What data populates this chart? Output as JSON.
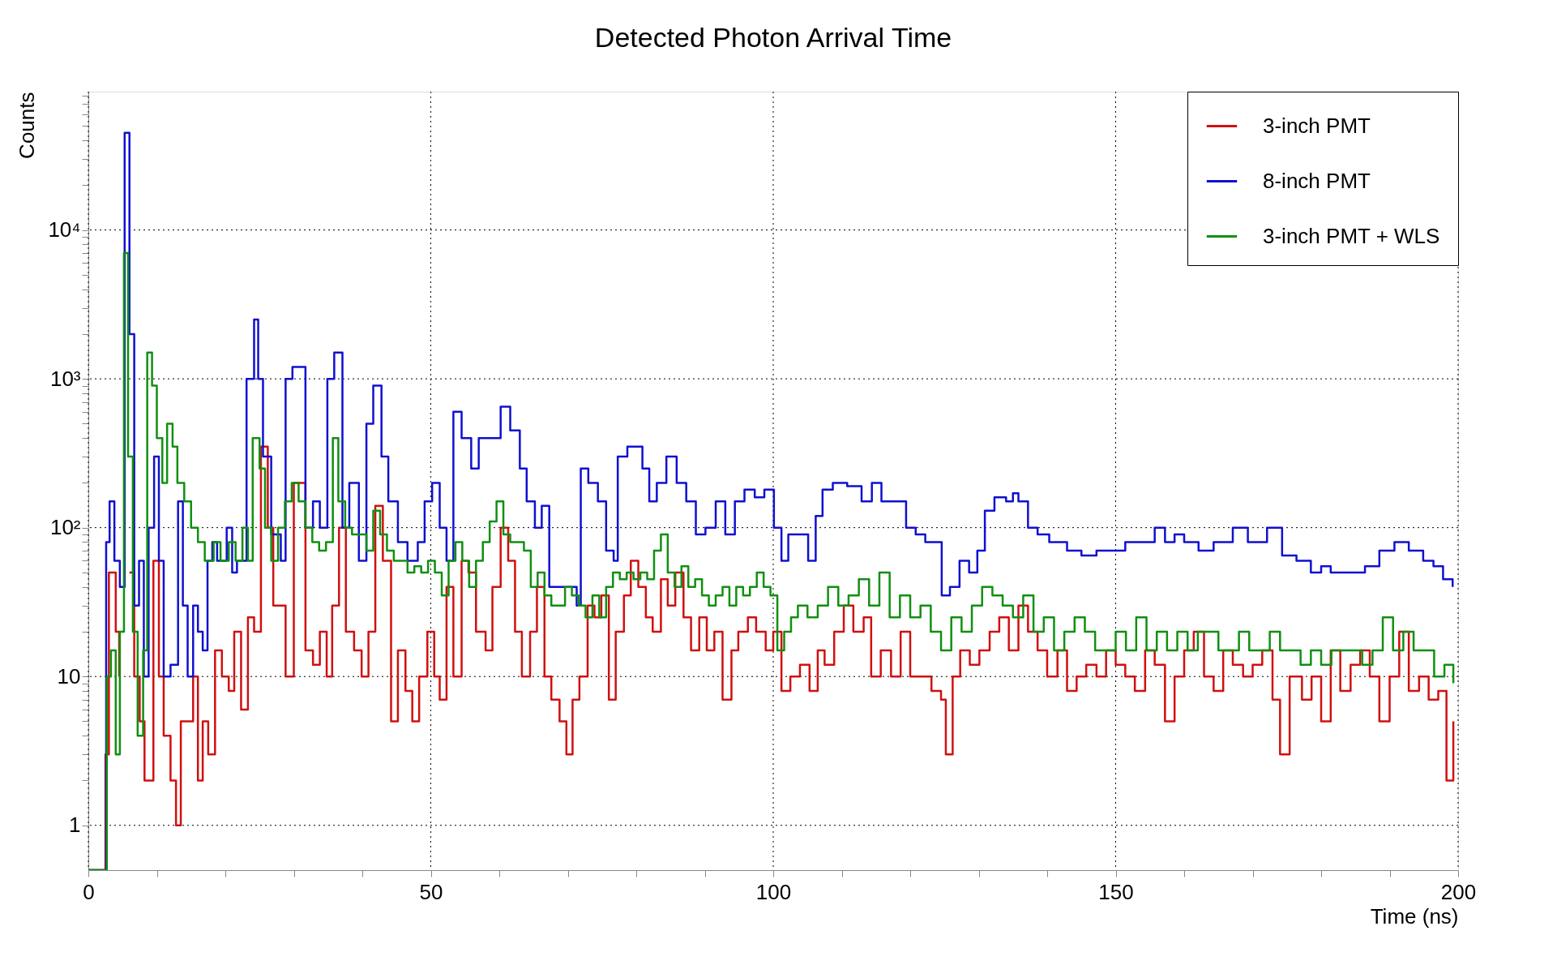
{
  "chart_data": {
    "type": "step",
    "title": "Detected Photon Arrival Time",
    "xlabel": "Time (ns)",
    "ylabel": "Counts",
    "log": "y",
    "grid": true,
    "legend": "top right",
    "xlim": [
      0,
      200
    ],
    "ylim": [
      0.5,
      85000
    ],
    "xticks": [
      0,
      {
        "value": 10,
        "label": null
      },
      {
        "value": 20,
        "label": null
      },
      {
        "value": 30,
        "label": null
      },
      {
        "value": 40,
        "label": null
      },
      50,
      {
        "value": 60,
        "label": null
      },
      {
        "value": 70,
        "label": null
      },
      {
        "value": 80,
        "label": null
      },
      {
        "value": 90,
        "label": null
      },
      100,
      {
        "value": 110,
        "label": null
      },
      {
        "value": 120,
        "label": null
      },
      {
        "value": 130,
        "label": null
      },
      {
        "value": 140,
        "label": null
      },
      150,
      {
        "value": 160,
        "label": null
      },
      {
        "value": 170,
        "label": null
      },
      {
        "value": 180,
        "label": null
      },
      {
        "value": 190,
        "label": null
      },
      200
    ],
    "yticks": [
      1,
      {
        "value": 2,
        "label": null
      },
      {
        "value": 3,
        "label": null
      },
      {
        "value": 4,
        "label": null
      },
      {
        "value": 5,
        "label": null
      },
      {
        "value": 6,
        "label": null
      },
      {
        "value": 7,
        "label": null
      },
      {
        "value": 8,
        "label": null
      },
      {
        "value": 9,
        "label": null
      },
      10,
      {
        "value": 20,
        "label": null
      },
      {
        "value": 30,
        "label": null
      },
      {
        "value": 40,
        "label": null
      },
      {
        "value": 50,
        "label": null
      },
      {
        "value": 60,
        "label": null
      },
      {
        "value": 70,
        "label": null
      },
      {
        "value": 80,
        "label": null
      },
      {
        "value": 90,
        "label": null
      },
      {
        "value": 100,
        "label": "10²"
      },
      {
        "value": 200,
        "label": null
      },
      {
        "value": 300,
        "label": null
      },
      {
        "value": 400,
        "label": null
      },
      {
        "value": 500,
        "label": null
      },
      {
        "value": 600,
        "label": null
      },
      {
        "value": 700,
        "label": null
      },
      {
        "value": 800,
        "label": null
      },
      {
        "value": 900,
        "label": null
      },
      {
        "value": 1000,
        "label": "10³"
      },
      {
        "value": 2000,
        "label": null
      },
      {
        "value": 3000,
        "label": null
      },
      {
        "value": 4000,
        "label": null
      },
      {
        "value": 5000,
        "label": null
      },
      {
        "value": 6000,
        "label": null
      },
      {
        "value": 7000,
        "label": null
      },
      {
        "value": 8000,
        "label": null
      },
      {
        "value": 9000,
        "label": null
      },
      {
        "value": 10000,
        "label": "10⁴"
      },
      {
        "value": 20000,
        "label": null
      },
      {
        "value": 30000,
        "label": null
      },
      {
        "value": 40000,
        "label": null
      },
      {
        "value": 50000,
        "label": null
      },
      {
        "value": 60000,
        "label": null
      },
      {
        "value": 70000,
        "label": null
      },
      {
        "value": 80000,
        "label": null
      }
    ],
    "series": [
      {
        "name": "3-inch PMT",
        "color": "#d01010",
        "x": [
          0,
          2.5,
          3,
          4,
          4.5,
          5.2,
          6,
          6.7,
          7.5,
          8.2,
          9.5,
          10.3,
          11,
          12,
          12.8,
          13.5,
          14.5,
          15.3,
          16,
          16.7,
          17.5,
          18.5,
          19.5,
          20.5,
          21.3,
          22.3,
          23.3,
          24.2,
          25.2,
          26.2,
          27,
          28,
          28.8,
          30,
          30.7,
          31.7,
          32.8,
          33.8,
          34.8,
          35.6,
          36.6,
          37.6,
          38.8,
          39.9,
          40.9,
          41.9,
          43,
          44.2,
          45.2,
          46.3,
          47.3,
          48.3,
          49.5,
          50.5,
          51.3,
          52.3,
          53.3,
          54.5,
          55.5,
          56.6,
          58,
          59,
          60.2,
          61.3,
          62.3,
          63.3,
          64.5,
          65.5,
          66.6,
          67.6,
          68.8,
          69.8,
          70.7,
          71.7,
          72.9,
          73.9,
          74.9,
          76,
          77,
          78.2,
          79.2,
          80.3,
          81.4,
          82.4,
          83.6,
          84.6,
          85.7,
          86.9,
          88,
          89.2,
          90.3,
          91.4,
          92.6,
          93.9,
          94.9,
          96.3,
          97.5,
          98.9,
          100,
          101.2,
          102.5,
          103.9,
          105.3,
          106.5,
          107.5,
          108.9,
          110.3,
          111.7,
          113.2,
          114.3,
          115.7,
          117.2,
          118.6,
          120,
          121.7,
          123.1,
          124.5,
          125.2,
          126.2,
          127.3,
          128.7,
          130.1,
          131.6,
          133,
          134.4,
          135.8,
          137.2,
          138.6,
          140,
          141.5,
          142.9,
          144.3,
          145.7,
          147.2,
          148.6,
          150,
          151.4,
          152.8,
          154.3,
          155.7,
          157.2,
          158.6,
          160,
          161.4,
          162.9,
          164.3,
          165.7,
          167.1,
          168.6,
          170,
          171.4,
          172.9,
          174,
          175.4,
          177.2,
          178.6,
          180,
          181.4,
          182.8,
          184.3,
          185.7,
          187.1,
          188.5,
          190,
          191.4,
          192.8,
          194.3,
          195.7,
          197.1,
          198.3,
          199.3
        ],
        "values": [
          0.5,
          3,
          50,
          20,
          10,
          null,
          50,
          10,
          5,
          2,
          60,
          10,
          4,
          2,
          1,
          5,
          5,
          10,
          2,
          5,
          3,
          15,
          10,
          8,
          20,
          6,
          25,
          20,
          350,
          100,
          30,
          30,
          10,
          200,
          200,
          15,
          12,
          20,
          10,
          30,
          100,
          20,
          15,
          10,
          20,
          140,
          60,
          5,
          15,
          8,
          5,
          10,
          20,
          10,
          7,
          40,
          10,
          60,
          50,
          20,
          15,
          40,
          100,
          60,
          20,
          10,
          20,
          40,
          10,
          7,
          5,
          3,
          7,
          10,
          30,
          25,
          35,
          7,
          20,
          35,
          60,
          40,
          25,
          20,
          45,
          30,
          50,
          25,
          15,
          25,
          15,
          20,
          7,
          15,
          20,
          25,
          20,
          15,
          20,
          8,
          10,
          12,
          8,
          15,
          12,
          20,
          30,
          20,
          25,
          10,
          15,
          10,
          20,
          10,
          10,
          8,
          7,
          3,
          10,
          15,
          12,
          15,
          20,
          25,
          15,
          30,
          20,
          15,
          10,
          15,
          8,
          10,
          12,
          10,
          15,
          12,
          10,
          8,
          15,
          12,
          5,
          10,
          15,
          20,
          10,
          8,
          15,
          12,
          10,
          12,
          15,
          7,
          3,
          10,
          7,
          10,
          5,
          15,
          8,
          12,
          15,
          10,
          5,
          10,
          20,
          8,
          10,
          7,
          8,
          2,
          5
        ]
      },
      {
        "name": "8-inch PMT",
        "color": "#1010d0",
        "x": [
          0,
          2.6,
          3.1,
          3.8,
          4.6,
          5.3,
          6.0,
          6.7,
          7.4,
          8.1,
          8.8,
          9.6,
          10.3,
          11.0,
          12.0,
          13.1,
          13.8,
          14.5,
          15.3,
          16.0,
          16.7,
          17.4,
          18.1,
          18.8,
          20.2,
          21.0,
          21.7,
          23.1,
          24.2,
          24.8,
          25.5,
          26.7,
          28.1,
          28.8,
          29.8,
          30.9,
          31.7,
          32.8,
          33.8,
          34.9,
          35.9,
          37.1,
          38.1,
          39.5,
          40.6,
          41.6,
          42.8,
          43.8,
          45.2,
          46.6,
          48.1,
          49.1,
          50.2,
          51.3,
          52.3,
          53.3,
          54.5,
          55.9,
          57.0,
          58.3,
          60.2,
          61.6,
          63.0,
          64.0,
          65.2,
          66.2,
          67.3,
          69.4,
          71.3,
          71.9,
          73.0,
          74.4,
          75.6,
          76.7,
          77.3,
          78.7,
          79.9,
          80.9,
          81.9,
          83.0,
          84.4,
          85.9,
          87.3,
          88.7,
          90.1,
          91.6,
          93.0,
          94.4,
          95.8,
          97.3,
          98.7,
          100.1,
          101.2,
          102.2,
          103.7,
          105.1,
          106.2,
          107.2,
          108.7,
          110.8,
          112.9,
          114.4,
          115.8,
          117.9,
          119.4,
          120.8,
          122.2,
          123.6,
          124.6,
          125.8,
          127.2,
          128.6,
          129.8,
          130.9,
          132.3,
          134.0,
          135.0,
          135.8,
          137.2,
          138.6,
          140.3,
          141.5,
          142.9,
          145.0,
          147.2,
          149.3,
          151.4,
          153.6,
          155.7,
          157.2,
          158.6,
          160.0,
          162.1,
          164.3,
          167.1,
          169.3,
          172.1,
          174.3,
          176.4,
          178.5,
          180.0,
          181.4,
          184.2,
          186.4,
          188.5,
          190.7,
          192.8,
          194.9,
          196.4,
          197.8,
          199.2
        ],
        "values": [
          0.5,
          80,
          150,
          60,
          40,
          45000,
          2000,
          30,
          60,
          10,
          100,
          300,
          60,
          10,
          12,
          150,
          30,
          10,
          30,
          20,
          15,
          60,
          80,
          60,
          100,
          50,
          60,
          1000,
          2500,
          1000,
          300,
          90,
          60,
          1000,
          1200,
          1200,
          100,
          150,
          100,
          1000,
          1500,
          100,
          200,
          60,
          500,
          900,
          300,
          150,
          80,
          60,
          80,
          150,
          200,
          100,
          60,
          600,
          400,
          250,
          400,
          400,
          650,
          450,
          250,
          150,
          100,
          140,
          40,
          40,
          30,
          250,
          200,
          150,
          70,
          60,
          300,
          350,
          350,
          250,
          150,
          200,
          300,
          200,
          150,
          90,
          100,
          150,
          90,
          150,
          180,
          160,
          180,
          100,
          60,
          90,
          90,
          60,
          120,
          180,
          200,
          190,
          150,
          200,
          150,
          150,
          100,
          90,
          80,
          80,
          35,
          40,
          60,
          50,
          70,
          130,
          160,
          150,
          170,
          150,
          100,
          90,
          80,
          80,
          70,
          65,
          70,
          70,
          80,
          80,
          100,
          80,
          90,
          80,
          70,
          80,
          100,
          80,
          100,
          65,
          60,
          50,
          55,
          50,
          50,
          55,
          70,
          80,
          70,
          60,
          55,
          45,
          40
        ]
      },
      {
        "name": "3-inch PMT + WLS",
        "color": "#109010",
        "x": [
          0,
          2.7,
          3.3,
          4,
          4.6,
          5.2,
          5.8,
          6.5,
          7.2,
          8,
          8.6,
          9.3,
          10,
          10.8,
          11.5,
          12.3,
          13,
          14,
          15,
          16,
          17,
          18.3,
          19.3,
          20.5,
          21.5,
          22.5,
          23.3,
          24,
          25,
          25.8,
          26.7,
          27.7,
          28.7,
          29.7,
          30.7,
          31.7,
          32.7,
          33.7,
          34.7,
          35.7,
          36.5,
          37.5,
          38.5,
          39.6,
          40.6,
          41.6,
          42.6,
          43.6,
          44.6,
          45.7,
          46.6,
          47.6,
          48.6,
          49.6,
          50.6,
          51.6,
          52.6,
          53.6,
          54.6,
          55.6,
          56.6,
          57.6,
          58.6,
          59.6,
          60.6,
          61.6,
          62.6,
          63.6,
          64.6,
          65.6,
          66.6,
          67.6,
          68.6,
          69.6,
          70.6,
          71.6,
          72.6,
          73.6,
          74.6,
          75.6,
          76.6,
          77.6,
          78.6,
          79.6,
          80.6,
          81.6,
          82.6,
          83.6,
          84.6,
          85.6,
          86.6,
          87.6,
          88.6,
          89.6,
          90.6,
          91.6,
          92.6,
          93.6,
          94.6,
          95.6,
          96.6,
          97.6,
          98.6,
          99.6,
          100.6,
          101.6,
          102.6,
          103.6,
          105,
          106.5,
          108,
          109.5,
          111,
          112.5,
          114,
          115.5,
          117,
          118.5,
          120,
          121.5,
          123,
          124.5,
          126,
          127.5,
          129,
          130.5,
          132,
          133.5,
          135,
          136.5,
          138,
          139.5,
          141,
          142.5,
          144,
          145.5,
          147,
          148.5,
          150,
          151.5,
          153,
          154.5,
          156,
          157.5,
          159,
          160.5,
          162,
          163.5,
          165,
          166.5,
          168,
          169.5,
          171,
          172.5,
          174,
          175.5,
          177,
          178.5,
          180,
          181.5,
          183,
          184.5,
          186,
          187.5,
          189,
          190.5,
          192,
          193.5,
          195,
          196.5,
          198,
          199.3
        ],
        "values": [
          0.5,
          10,
          15,
          3,
          20,
          7000,
          300,
          20,
          4,
          15,
          1500,
          900,
          400,
          200,
          500,
          350,
          200,
          150,
          100,
          80,
          60,
          80,
          60,
          80,
          60,
          100,
          60,
          400,
          250,
          100,
          60,
          100,
          150,
          200,
          150,
          100,
          80,
          70,
          80,
          400,
          150,
          100,
          90,
          90,
          70,
          130,
          90,
          70,
          60,
          60,
          50,
          55,
          50,
          60,
          50,
          35,
          60,
          80,
          60,
          40,
          60,
          80,
          110,
          150,
          90,
          80,
          80,
          70,
          40,
          50,
          35,
          30,
          30,
          40,
          35,
          30,
          25,
          35,
          25,
          40,
          50,
          45,
          50,
          45,
          50,
          45,
          70,
          90,
          50,
          40,
          55,
          40,
          45,
          35,
          30,
          35,
          40,
          30,
          40,
          35,
          40,
          50,
          40,
          35,
          15,
          20,
          25,
          30,
          25,
          30,
          40,
          30,
          35,
          45,
          30,
          50,
          25,
          35,
          25,
          30,
          20,
          15,
          25,
          20,
          30,
          40,
          35,
          30,
          25,
          35,
          20,
          25,
          15,
          20,
          25,
          20,
          15,
          15,
          20,
          15,
          25,
          15,
          20,
          15,
          20,
          15,
          20,
          20,
          15,
          15,
          20,
          15,
          15,
          20,
          15,
          15,
          12,
          15,
          12,
          15,
          15,
          15,
          12,
          15,
          25,
          15,
          20,
          15,
          15,
          10,
          12,
          9
        ]
      }
    ]
  }
}
